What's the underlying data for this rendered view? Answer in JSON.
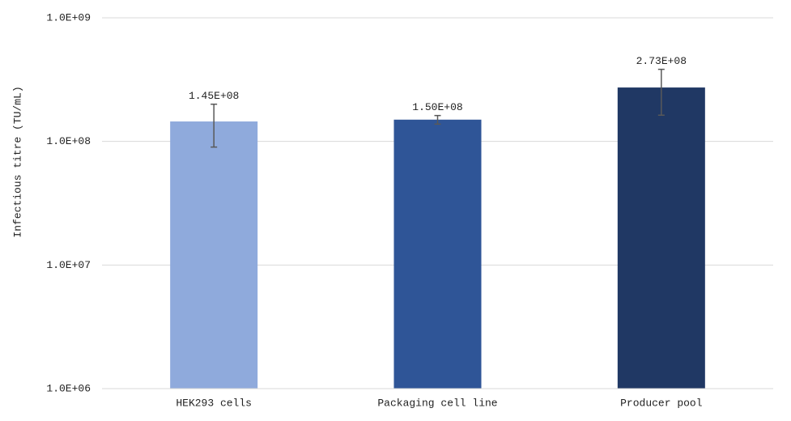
{
  "chart_data": {
    "type": "bar",
    "y_label": "Infectious titre (TU/mL)",
    "categories": [
      "HEK293 cells",
      "Packaging cell line",
      "Producer pool"
    ],
    "values": [
      145000000,
      150000000,
      273000000
    ],
    "value_labels": [
      "1.45E+08",
      "1.50E+08",
      "2.73E+08"
    ],
    "errors": [
      55000000,
      12000000,
      110000000
    ],
    "colors": [
      "#8faadc",
      "#2f5597",
      "#203864"
    ],
    "error_color": "#595959",
    "log_scale": true,
    "ylim": [
      1000000,
      1000000000
    ],
    "yticks": [
      {
        "value": 1000000,
        "label": "1.0E+06"
      },
      {
        "value": 10000000,
        "label": "1.0E+07"
      },
      {
        "value": 100000000,
        "label": "1.0E+08"
      },
      {
        "value": 1000000000,
        "label": "1.0E+09"
      }
    ],
    "grid": true
  }
}
